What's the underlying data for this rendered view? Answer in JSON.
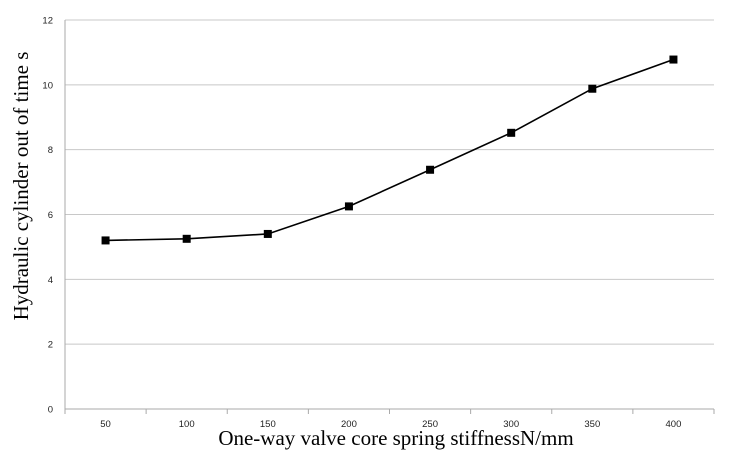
{
  "chart_data": {
    "type": "line",
    "title": "",
    "xlabel": "One-way valve core spring stiffnessN/mm",
    "ylabel": "Hydraulic cylinder out of time s",
    "categories": [
      "50",
      "100",
      "150",
      "200",
      "250",
      "300",
      "350",
      "400"
    ],
    "y_ticks": [
      "0",
      "2",
      "4",
      "6",
      "8",
      "10",
      "12"
    ],
    "ylim": [
      0,
      12
    ],
    "grid": true,
    "legend": "none",
    "series": [
      {
        "values": [
          5.2,
          5.25,
          5.4,
          6.25,
          7.38,
          8.52,
          9.88,
          10.78
        ],
        "color": "#000000",
        "marker": "square"
      }
    ]
  }
}
